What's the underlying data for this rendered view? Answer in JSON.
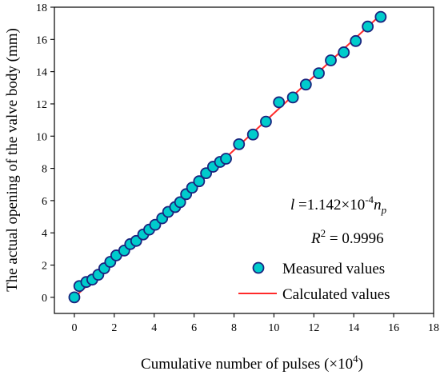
{
  "chart_data": {
    "type": "scatter",
    "xlabel": "Cumulative number of pulses (×10",
    "xlabel_sup": "4",
    "xlabel_close": ")",
    "ylabel": "The actual opening of the valve body (mm)",
    "xlim": [
      -1,
      18
    ],
    "ylim": [
      -1,
      18
    ],
    "x_ticks": [
      0,
      2,
      4,
      6,
      8,
      10,
      12,
      14,
      16,
      18
    ],
    "y_ticks": [
      0,
      2,
      4,
      6,
      8,
      10,
      12,
      14,
      16,
      18
    ],
    "equation": {
      "var": "l",
      "eq_text": " =1.142×10",
      "exp": "-4",
      "n": "n",
      "sub": "p"
    },
    "r2": {
      "R": "R",
      "sup": "2",
      "rest": " = 0.9996"
    },
    "legend": {
      "position": "bottom-right",
      "measured": "Measured values",
      "calculated": "Calculated values"
    },
    "colors": {
      "marker_fill": "#00cccc",
      "marker_edge": "#1a237e",
      "line": "#ff2a2a"
    },
    "line": {
      "slope": 1.142,
      "x_start": 0,
      "x_end": 15.3
    },
    "series": [
      {
        "name": "Measured values",
        "points": [
          [
            0,
            0
          ],
          [
            0.25,
            0.7
          ],
          [
            0.6,
            0.95
          ],
          [
            0.9,
            1.1
          ],
          [
            1.2,
            1.4
          ],
          [
            1.5,
            1.8
          ],
          [
            1.8,
            2.2
          ],
          [
            2.1,
            2.6
          ],
          [
            2.5,
            2.9
          ],
          [
            2.8,
            3.3
          ],
          [
            3.1,
            3.5
          ],
          [
            3.45,
            3.9
          ],
          [
            3.75,
            4.2
          ],
          [
            4.05,
            4.5
          ],
          [
            4.4,
            4.9
          ],
          [
            4.7,
            5.3
          ],
          [
            5.05,
            5.6
          ],
          [
            5.3,
            5.9
          ],
          [
            5.6,
            6.4
          ],
          [
            5.9,
            6.8
          ],
          [
            6.25,
            7.2
          ],
          [
            6.6,
            7.7
          ],
          [
            6.95,
            8.1
          ],
          [
            7.3,
            8.4
          ],
          [
            7.6,
            8.6
          ],
          [
            8.25,
            9.5
          ],
          [
            8.95,
            10.1
          ],
          [
            9.6,
            10.9
          ],
          [
            10.25,
            12.1
          ],
          [
            10.95,
            12.4
          ],
          [
            11.6,
            13.2
          ],
          [
            12.25,
            13.9
          ],
          [
            12.85,
            14.7
          ],
          [
            13.5,
            15.2
          ],
          [
            14.1,
            15.9
          ],
          [
            14.7,
            16.8
          ],
          [
            15.35,
            17.4
          ]
        ]
      }
    ]
  }
}
